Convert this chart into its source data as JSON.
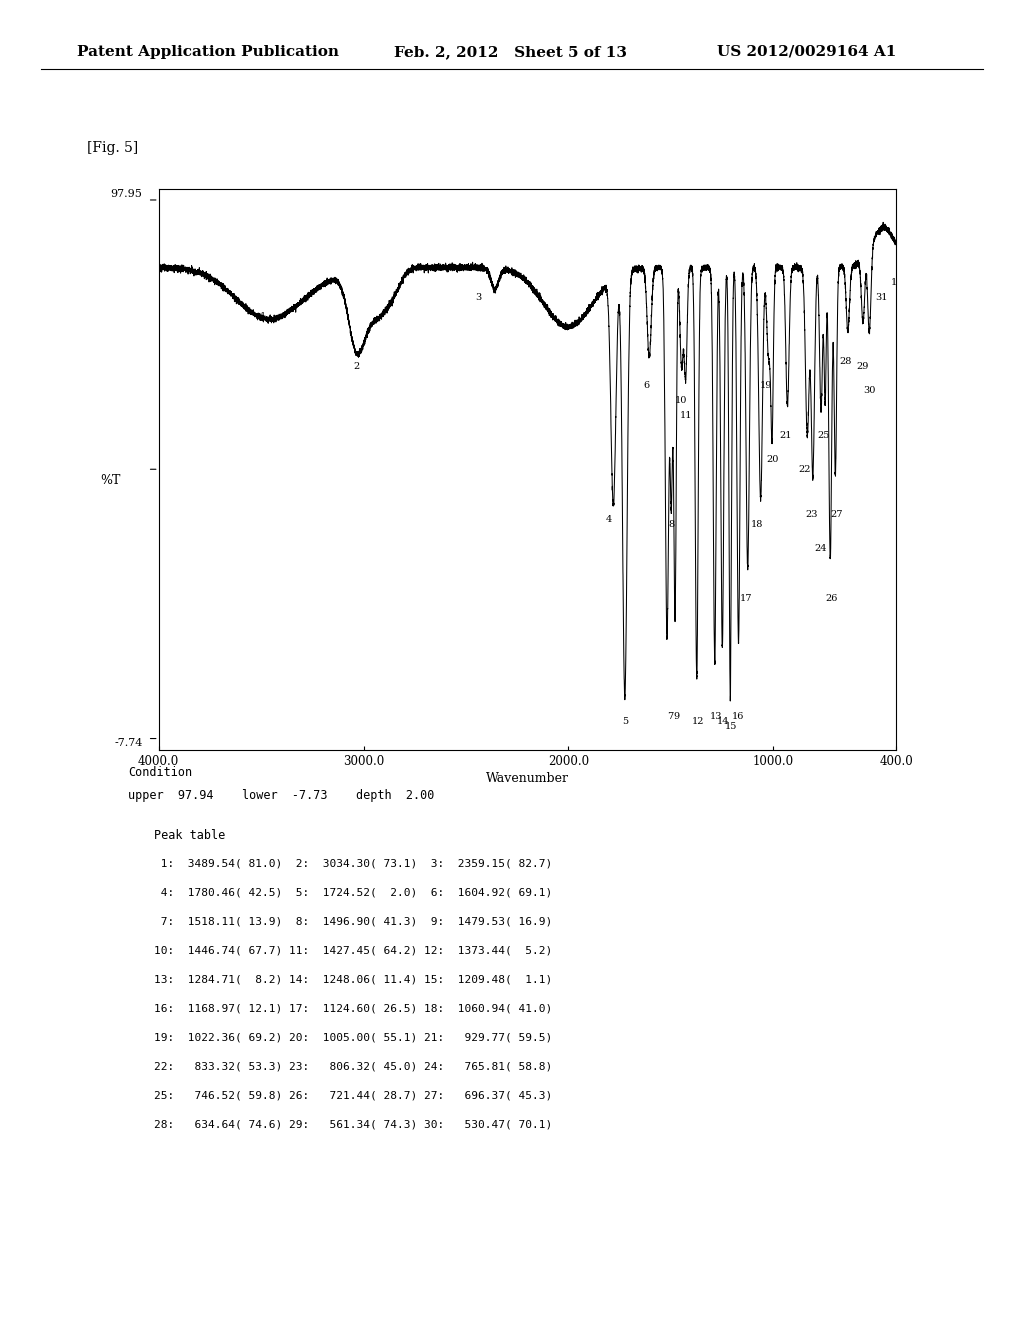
{
  "fig_label": "[Fig. 5]",
  "header_left": "Patent Application Publication",
  "header_mid": "Feb. 2, 2012   Sheet 5 of 13",
  "header_right": "US 2012/0029164 A1",
  "ylabel": "%T",
  "xlabel": "Wavenumber",
  "xlim_left": 4000.0,
  "xlim_right": 400.0,
  "ymin": -7.74,
  "ymax": 97.95,
  "xtick_labels": [
    "4000.0",
    "3000.0",
    "2000.0",
    "1000.0",
    "400.0"
  ],
  "xtick_vals": [
    4000.0,
    3000.0,
    2000.0,
    1000.0,
    400.0
  ],
  "condition_line1": "Condition",
  "condition_line2": "upper  97.94    lower  -7.73    depth  2.00",
  "peak_table_title": "Peak table",
  "peak_table": [
    " 1:  3489.54( 81.0)  2:  3034.30( 73.1)  3:  2359.15( 82.7)",
    " 4:  1780.46( 42.5)  5:  1724.52(  2.0)  6:  1604.92( 69.1)",
    " 7:  1518.11( 13.9)  8:  1496.90( 41.3)  9:  1479.53( 16.9)",
    "10:  1446.74( 67.7) 11:  1427.45( 64.2) 12:  1373.44(  5.2)",
    "13:  1284.71(  8.2) 14:  1248.06( 11.4) 15:  1209.48(  1.1)",
    "16:  1168.97( 12.1) 17:  1124.60( 26.5) 18:  1060.94( 41.0)",
    "19:  1022.36( 69.2) 20:  1005.00( 55.1) 21:   929.77( 59.5)",
    "22:   833.32( 53.3) 23:   806.32( 45.0) 24:   765.81( 58.8)",
    "25:   746.52( 59.8) 26:   721.44( 28.7) 27:   696.37( 45.3)",
    "28:   634.64( 74.6) 29:   561.34( 74.3) 30:   530.47( 70.1)"
  ],
  "background_color": "#ffffff",
  "line_color": "#000000"
}
